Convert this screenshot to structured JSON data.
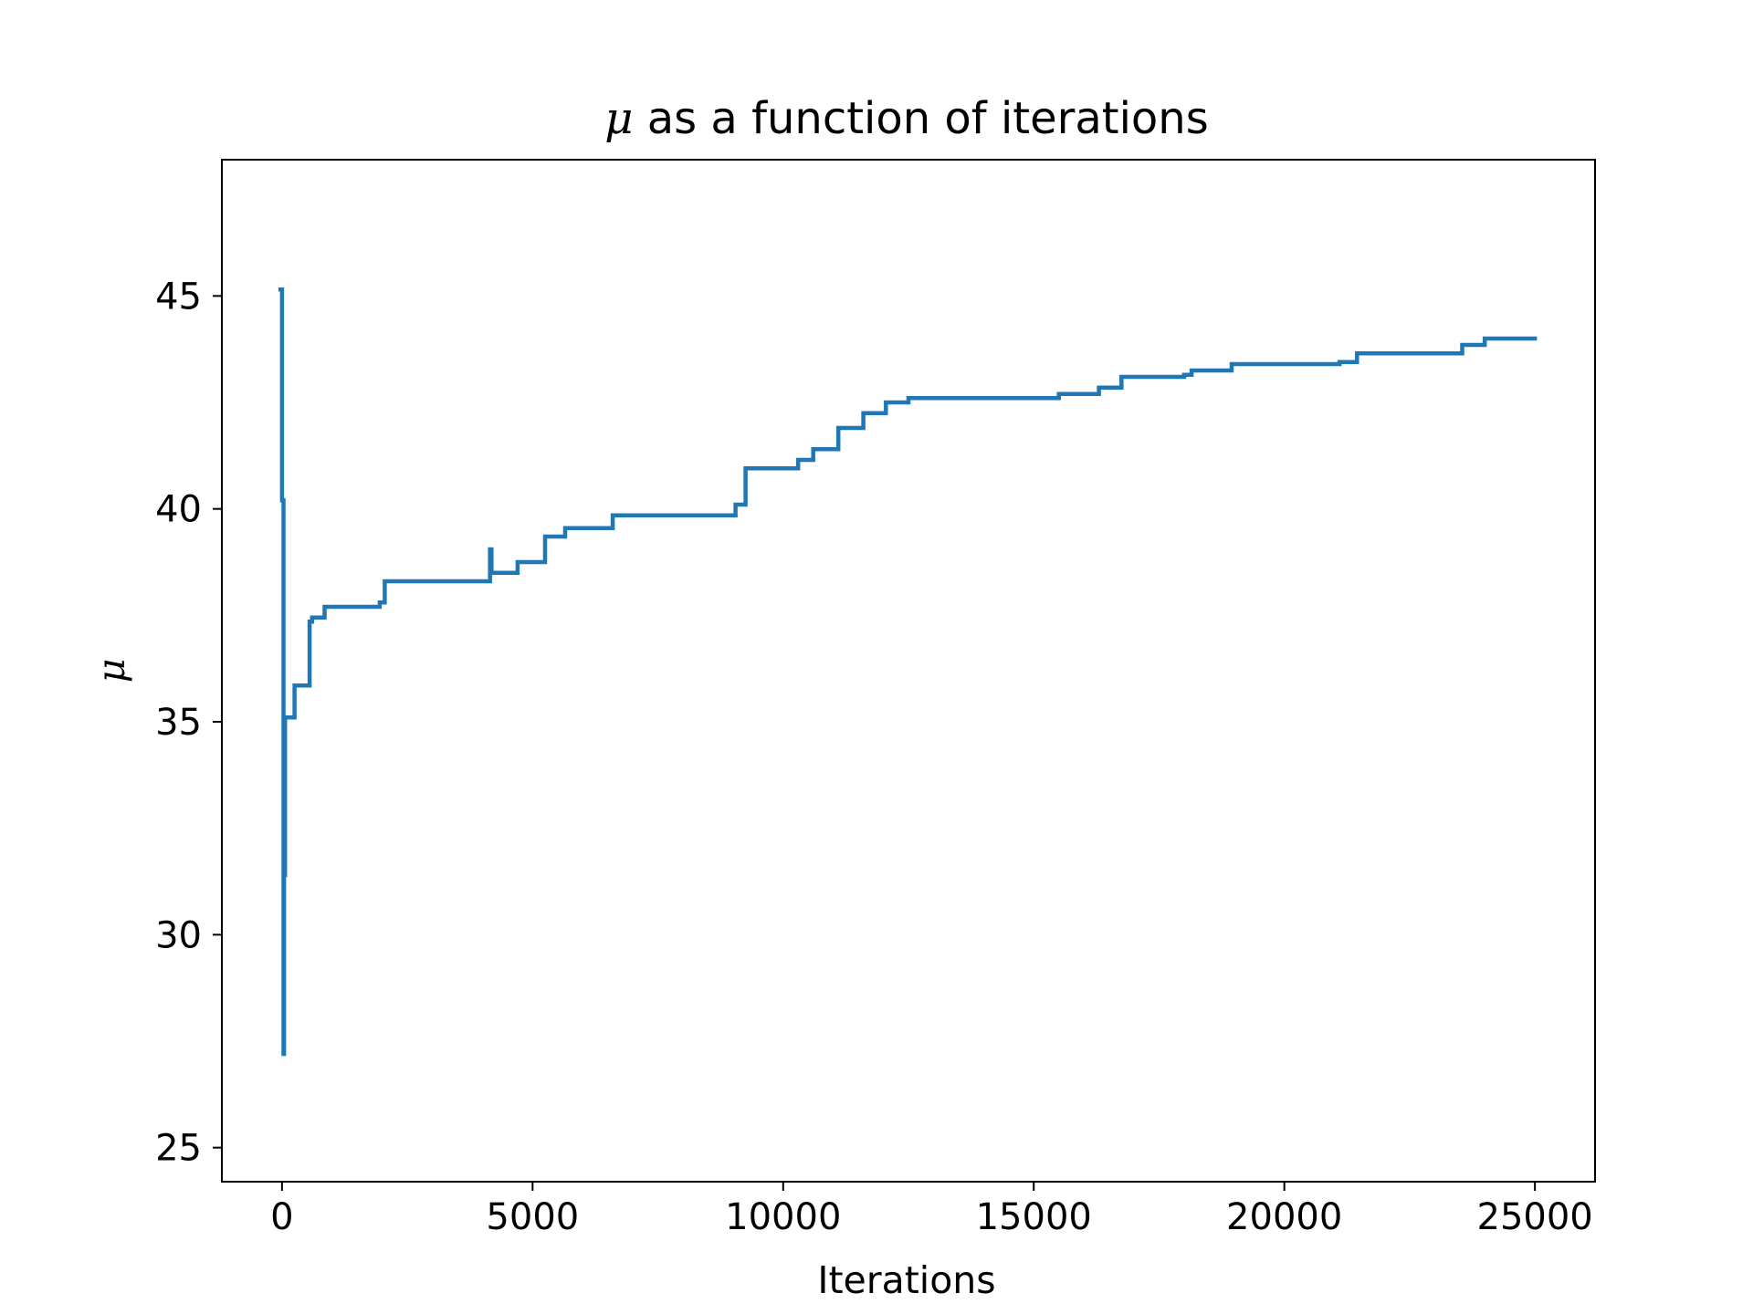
{
  "chart_data": {
    "type": "line",
    "title_symbol": "μ",
    "title_rest": " as a function of iterations",
    "xlabel": "Iterations",
    "ylabel": "μ",
    "xlim": [
      -1200,
      26200
    ],
    "ylim": [
      24.2,
      48.2
    ],
    "grid": false,
    "legend": "none",
    "x_ticks": [
      0,
      5000,
      10000,
      15000,
      20000,
      25000
    ],
    "x_tick_labels": [
      "0",
      "5000",
      "10000",
      "15000",
      "20000",
      "25000"
    ],
    "y_ticks": [
      25,
      30,
      35,
      40,
      45
    ],
    "y_tick_labels": [
      "25",
      "30",
      "35",
      "40",
      "45"
    ],
    "colors": {
      "line": "#1f77b4",
      "axes": "#000000",
      "background": "#ffffff"
    },
    "series": [
      {
        "x": [
          -30,
          0,
          0,
          0,
          30,
          30,
          40,
          40,
          60,
          60,
          90,
          90,
          250,
          250,
          550,
          550,
          600,
          600,
          850,
          850,
          1950,
          1950,
          2050,
          2050,
          4150,
          4150,
          4180,
          4180,
          4700,
          4700,
          5250,
          5250,
          5650,
          5650,
          6600,
          6600,
          9050,
          9050,
          9250,
          9250,
          10300,
          10300,
          10600,
          10600,
          11100,
          11100,
          11600,
          11600,
          12050,
          12050,
          12500,
          12500,
          15500,
          15500,
          16300,
          16300,
          16750,
          16750,
          18000,
          18000,
          18150,
          18150,
          18950,
          18950,
          21100,
          21100,
          21450,
          21450,
          23550,
          23550,
          24000,
          24000,
          25000
        ],
        "y": [
          45.15,
          45.15,
          40.2,
          40.2,
          40.2,
          27.2,
          27.2,
          31.4,
          31.4,
          35.1,
          35.1,
          35.1,
          35.1,
          35.85,
          35.85,
          37.35,
          37.35,
          37.45,
          37.45,
          37.7,
          37.7,
          37.8,
          37.8,
          38.3,
          38.3,
          39.05,
          39.05,
          38.5,
          38.5,
          38.75,
          38.75,
          39.35,
          39.35,
          39.55,
          39.55,
          39.85,
          39.85,
          40.1,
          40.1,
          40.95,
          40.95,
          41.15,
          41.15,
          41.4,
          41.4,
          41.9,
          41.9,
          42.25,
          42.25,
          42.5,
          42.5,
          42.6,
          42.6,
          42.7,
          42.7,
          42.85,
          42.85,
          43.1,
          43.1,
          43.15,
          43.15,
          43.25,
          43.25,
          43.4,
          43.4,
          43.45,
          43.45,
          43.65,
          43.65,
          43.85,
          43.85,
          44.0,
          44.0
        ]
      }
    ]
  }
}
